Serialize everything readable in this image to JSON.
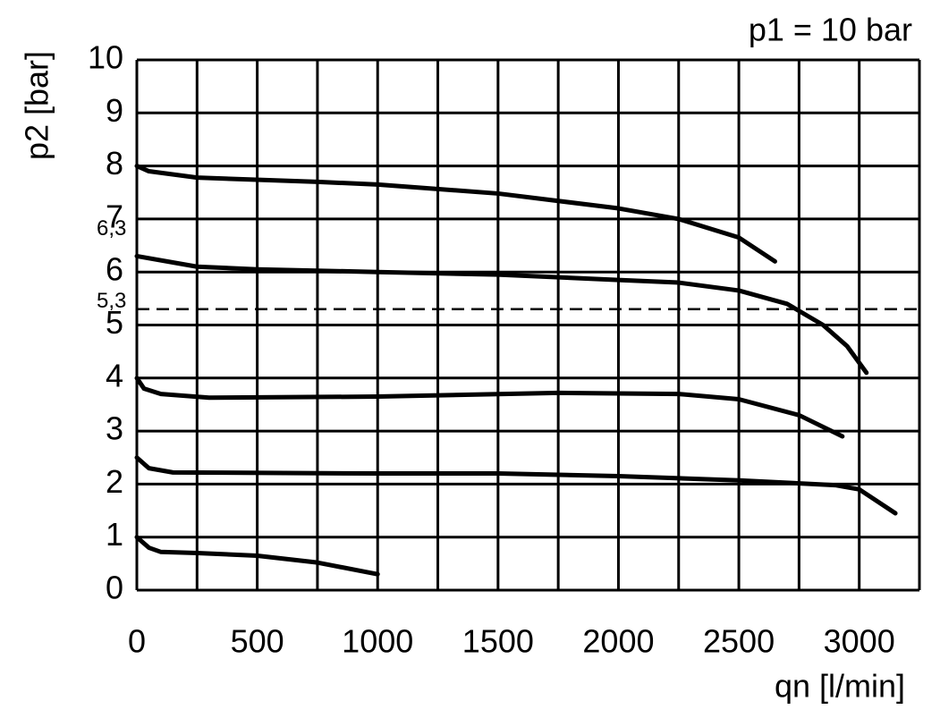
{
  "chart_data": {
    "type": "line",
    "title": "p1 = 10 bar",
    "x_label": "qn [l/min]",
    "y_label": "p2 [bar]",
    "xlim": [
      0,
      3250
    ],
    "ylim": [
      0,
      10
    ],
    "xticks": [
      0,
      500,
      1000,
      1500,
      2000,
      2500,
      3000
    ],
    "xgrid": [
      0,
      250,
      500,
      750,
      1000,
      1250,
      1500,
      1750,
      2000,
      2250,
      2500,
      2750,
      3000,
      3250
    ],
    "yticks": [
      0,
      1,
      2,
      3,
      4,
      5,
      6,
      7,
      8,
      9,
      10
    ],
    "grid": true,
    "annotations": [
      {
        "value": 6.3,
        "label": "6,3"
      }
    ],
    "reference_lines": [
      {
        "value": 5.3,
        "label": "5,3",
        "style": "dashed"
      }
    ],
    "series": [
      {
        "color": "#000000",
        "x": [
          0,
          50,
          250,
          750,
          1000,
          1500,
          2000,
          2250,
          2500,
          2650
        ],
        "values": [
          8,
          7.9,
          7.78,
          7.7,
          7.65,
          7.48,
          7.2,
          7.0,
          6.65,
          6.2
        ]
      },
      {
        "color": "#000000",
        "x": [
          0,
          250,
          500,
          1000,
          1500,
          2000,
          2250,
          2500,
          2700,
          2850,
          2950,
          3030
        ],
        "values": [
          6.3,
          6.1,
          6.05,
          6.0,
          5.95,
          5.85,
          5.8,
          5.65,
          5.4,
          5.0,
          4.6,
          4.1
        ]
      },
      {
        "color": "#000000",
        "x": [
          0,
          30,
          100,
          300,
          1000,
          1750,
          2250,
          2500,
          2750,
          2930
        ],
        "values": [
          4,
          3.8,
          3.7,
          3.63,
          3.65,
          3.72,
          3.7,
          3.6,
          3.3,
          2.9
        ]
      },
      {
        "color": "#000000",
        "x": [
          0,
          50,
          150,
          1000,
          1500,
          2000,
          2500,
          2900,
          3000,
          3150
        ],
        "values": [
          2.5,
          2.3,
          2.22,
          2.2,
          2.2,
          2.15,
          2.07,
          1.98,
          1.9,
          1.45
        ]
      },
      {
        "color": "#000000",
        "x": [
          0,
          50,
          100,
          250,
          500,
          750,
          1000
        ],
        "values": [
          1,
          0.8,
          0.72,
          0.7,
          0.65,
          0.52,
          0.3
        ]
      }
    ]
  }
}
